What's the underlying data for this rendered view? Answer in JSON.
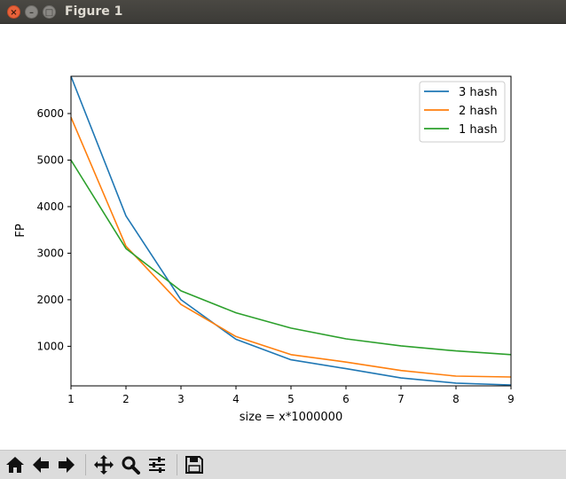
{
  "window": {
    "title": "Figure 1"
  },
  "window_controls": {
    "close": "×",
    "minimize": "–",
    "maximize": "□"
  },
  "toolbar": {
    "buttons": [
      {
        "name": "home-icon"
      },
      {
        "name": "back-icon"
      },
      {
        "name": "forward-icon"
      },
      {
        "name": "pan-icon"
      },
      {
        "name": "zoom-icon"
      },
      {
        "name": "configure-subplots-icon"
      },
      {
        "name": "save-icon"
      }
    ]
  },
  "chart_data": {
    "type": "line",
    "title": "",
    "xlabel": "size = x*1000000",
    "ylabel": "FP",
    "xlim": [
      1,
      9
    ],
    "ylim": [
      150,
      6800
    ],
    "x": [
      1,
      2,
      3,
      4,
      5,
      6,
      7,
      8,
      9
    ],
    "xticks": [
      1,
      2,
      3,
      4,
      5,
      6,
      7,
      8,
      9
    ],
    "yticks": [
      1000,
      2000,
      3000,
      4000,
      5000,
      6000
    ],
    "grid": false,
    "legend_position": "top-right",
    "series": [
      {
        "name": "3 hash",
        "color": "#1f77b4",
        "values": [
          6800,
          3800,
          2000,
          1150,
          710,
          520,
          320,
          210,
          170
        ]
      },
      {
        "name": "2 hash",
        "color": "#ff7f0e",
        "values": [
          5920,
          3150,
          1900,
          1210,
          820,
          660,
          480,
          360,
          340
        ]
      },
      {
        "name": "1 hash",
        "color": "#2ca02c",
        "values": [
          5000,
          3100,
          2190,
          1720,
          1390,
          1160,
          1010,
          900,
          820
        ]
      }
    ]
  }
}
